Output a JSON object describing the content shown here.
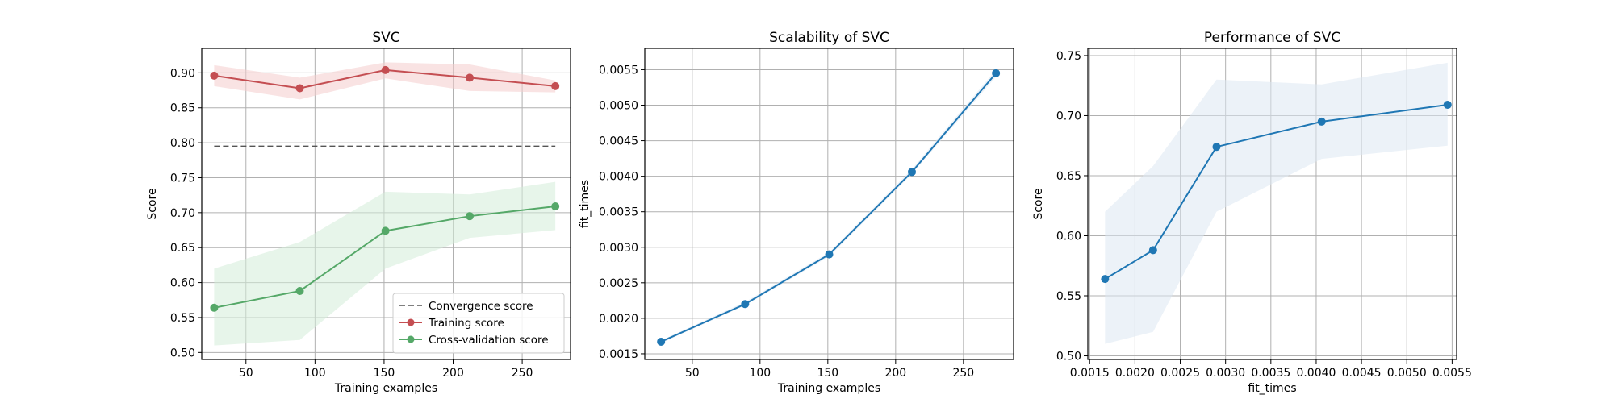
{
  "chart_data": [
    {
      "type": "line",
      "title": "SVC",
      "xlabel": "Training examples",
      "ylabel": "Score",
      "xlim": [
        18,
        285
      ],
      "ylim": [
        0.49,
        0.935
      ],
      "xticks": [
        50,
        100,
        150,
        200,
        250
      ],
      "yticks": [
        0.5,
        0.55,
        0.6,
        0.65,
        0.7,
        0.75,
        0.8,
        0.85,
        0.9
      ],
      "grid": true,
      "legend_position": "lower-right",
      "series": [
        {
          "name": "Convergence score",
          "kind": "dashed",
          "color": "#555555",
          "x": [
            27,
            274
          ],
          "y": [
            0.795,
            0.795
          ]
        },
        {
          "name": "Training score",
          "kind": "line-markers",
          "color": "#c44e52",
          "band_color": "#f4cccc",
          "x": [
            27,
            89,
            151,
            212,
            274
          ],
          "y": [
            0.896,
            0.878,
            0.904,
            0.893,
            0.881
          ],
          "lower": [
            0.881,
            0.862,
            0.892,
            0.874,
            0.872
          ],
          "upper": [
            0.911,
            0.893,
            0.915,
            0.912,
            0.889
          ]
        },
        {
          "name": "Cross-validation score",
          "kind": "line-markers",
          "color": "#55a868",
          "band_color": "#d4ecd9",
          "x": [
            27,
            89,
            151,
            212,
            274
          ],
          "y": [
            0.564,
            0.588,
            0.674,
            0.695,
            0.709
          ],
          "lower": [
            0.51,
            0.518,
            0.62,
            0.664,
            0.675
          ],
          "upper": [
            0.62,
            0.658,
            0.73,
            0.726,
            0.744
          ]
        }
      ]
    },
    {
      "type": "line",
      "title": "Scalability of SVC",
      "xlabel": "Training examples",
      "ylabel": "fit_times",
      "xlim": [
        15,
        287
      ],
      "ylim": [
        0.00142,
        0.0058
      ],
      "xticks": [
        50,
        100,
        150,
        200,
        250
      ],
      "yticks": [
        0.0015,
        0.002,
        0.0025,
        0.003,
        0.0035,
        0.004,
        0.0045,
        0.005,
        0.0055
      ],
      "grid": true,
      "series": [
        {
          "kind": "line-markers",
          "color": "#1f77b4",
          "band_color": "#dce8f3",
          "x": [
            27,
            89,
            151,
            212,
            274
          ],
          "y": [
            0.00167,
            0.0022,
            0.0029,
            0.00406,
            0.00545
          ],
          "lower": [
            0.00165,
            0.00218,
            0.00287,
            0.00403,
            0.0054
          ],
          "upper": [
            0.00169,
            0.00223,
            0.00293,
            0.0041,
            0.0055
          ]
        }
      ]
    },
    {
      "type": "line",
      "title": "Performance of SVC",
      "xlabel": "fit_times",
      "ylabel": "Score",
      "xlim": [
        0.00148,
        0.00555
      ],
      "ylim": [
        0.497,
        0.756
      ],
      "xticks": [
        0.0015,
        0.002,
        0.0025,
        0.003,
        0.0035,
        0.004,
        0.0045,
        0.005,
        0.0055
      ],
      "yticks": [
        0.5,
        0.55,
        0.6,
        0.65,
        0.7,
        0.75
      ],
      "grid": true,
      "series": [
        {
          "kind": "line-markers",
          "color": "#1f77b4",
          "band_color": "#dce8f3",
          "x": [
            0.00167,
            0.0022,
            0.0029,
            0.00406,
            0.00545
          ],
          "y": [
            0.564,
            0.588,
            0.674,
            0.695,
            0.709
          ],
          "lower": [
            0.51,
            0.52,
            0.62,
            0.664,
            0.675
          ],
          "upper": [
            0.62,
            0.658,
            0.73,
            0.726,
            0.744
          ]
        }
      ]
    }
  ]
}
